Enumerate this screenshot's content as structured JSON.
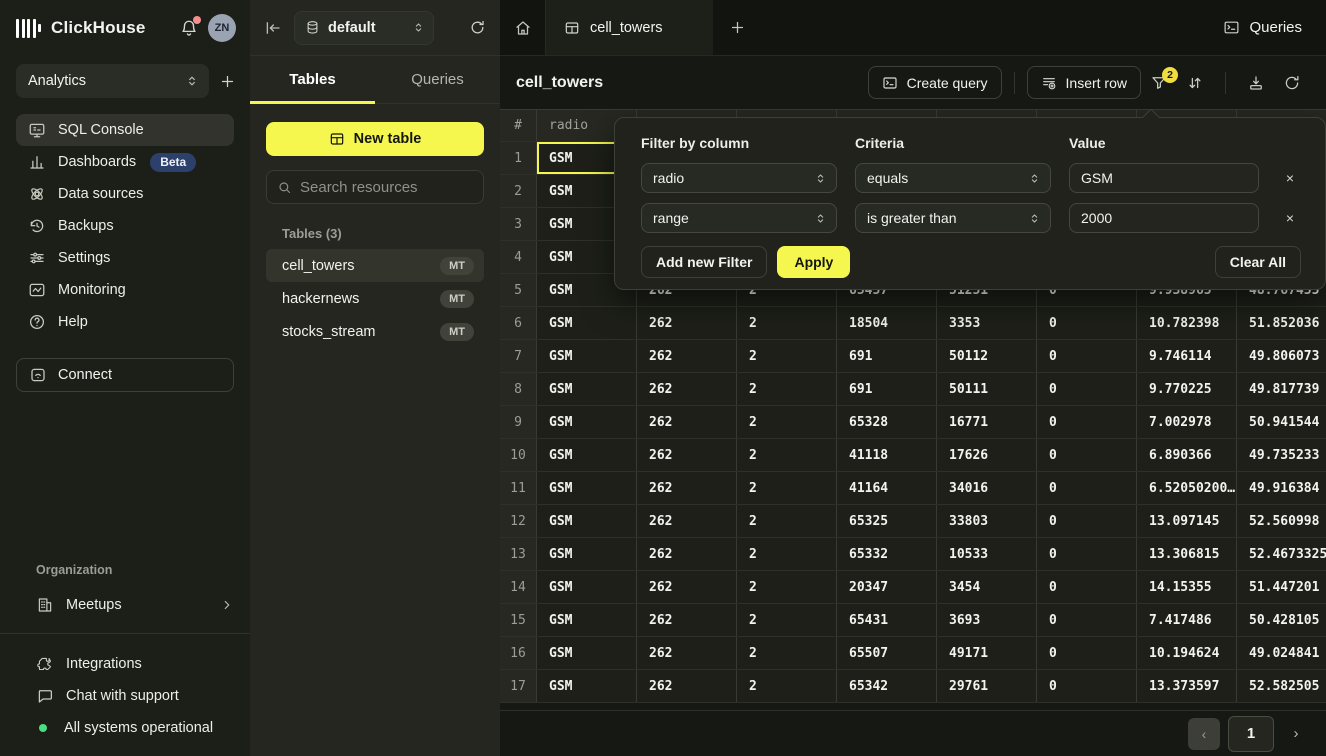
{
  "sidebar": {
    "brand": "ClickHouse",
    "avatar": "ZN",
    "workspace": "Analytics",
    "nav": [
      {
        "label": "SQL Console"
      },
      {
        "label": "Dashboards",
        "badge": "Beta"
      },
      {
        "label": "Data sources"
      },
      {
        "label": "Backups"
      },
      {
        "label": "Settings"
      },
      {
        "label": "Monitoring"
      },
      {
        "label": "Help"
      }
    ],
    "connect": "Connect",
    "organization": {
      "label": "Organization",
      "meetups": "Meetups"
    },
    "footer": {
      "integrations": "Integrations",
      "chat": "Chat with support",
      "status": "All systems operational"
    }
  },
  "panel2": {
    "database": "default",
    "tabs": {
      "tables": "Tables",
      "queries": "Queries"
    },
    "new_table": "New table",
    "search_placeholder": "Search resources",
    "tables_label": "Tables (3)",
    "tables": [
      {
        "name": "cell_towers",
        "engine": "MT",
        "selected": true
      },
      {
        "name": "hackernews",
        "engine": "MT",
        "selected": false
      },
      {
        "name": "stocks_stream",
        "engine": "MT",
        "selected": false
      }
    ]
  },
  "main": {
    "tab": "cell_towers",
    "queries_button": "Queries",
    "title": "cell_towers",
    "create_query": "Create query",
    "insert_row": "Insert row",
    "filter_badge": "2"
  },
  "filter_popup": {
    "column_label": "Filter by column",
    "criteria_label": "Criteria",
    "value_label": "Value",
    "filters": [
      {
        "column": "radio",
        "criteria": "equals",
        "value": "GSM"
      },
      {
        "column": "range",
        "criteria": "is greater than",
        "value": "2000"
      }
    ],
    "add_button": "Add new Filter",
    "apply_button": "Apply",
    "clear_button": "Clear All",
    "remove_symbol": "×"
  },
  "table": {
    "columns": [
      "#",
      "radio",
      "",
      "",
      "",
      "",
      "",
      "",
      ""
    ],
    "selected_cell": {
      "row": 0,
      "col": 1
    },
    "rows": [
      [
        "1",
        "GSM",
        "",
        "",
        "",
        "",
        "",
        "",
        ""
      ],
      [
        "2",
        "GSM",
        "",
        "",
        "",
        "",
        "",
        "",
        ""
      ],
      [
        "3",
        "GSM",
        "",
        "",
        "",
        "",
        "",
        "",
        ""
      ],
      [
        "4",
        "GSM",
        "",
        "",
        "",
        "",
        "",
        "",
        ""
      ],
      [
        "5",
        "GSM",
        "262",
        "2",
        "65457",
        "51251",
        "0",
        "9.938965",
        "48.767455"
      ],
      [
        "6",
        "GSM",
        "262",
        "2",
        "18504",
        "3353",
        "0",
        "10.782398",
        "51.852036"
      ],
      [
        "7",
        "GSM",
        "262",
        "2",
        "691",
        "50112",
        "0",
        "9.746114",
        "49.806073"
      ],
      [
        "8",
        "GSM",
        "262",
        "2",
        "691",
        "50111",
        "0",
        "9.770225",
        "49.817739"
      ],
      [
        "9",
        "GSM",
        "262",
        "2",
        "65328",
        "16771",
        "0",
        "7.002978",
        "50.941544"
      ],
      [
        "10",
        "GSM",
        "262",
        "2",
        "41118",
        "17626",
        "0",
        "6.890366",
        "49.735233"
      ],
      [
        "11",
        "GSM",
        "262",
        "2",
        "41164",
        "34016",
        "0",
        "6.52050200…",
        "49.916384"
      ],
      [
        "12",
        "GSM",
        "262",
        "2",
        "65325",
        "33803",
        "0",
        "13.097145",
        "52.560998"
      ],
      [
        "13",
        "GSM",
        "262",
        "2",
        "65332",
        "10533",
        "0",
        "13.306815",
        "52.4673325"
      ],
      [
        "14",
        "GSM",
        "262",
        "2",
        "20347",
        "3454",
        "0",
        "14.15355",
        "51.447201"
      ],
      [
        "15",
        "GSM",
        "262",
        "2",
        "65431",
        "3693",
        "0",
        "7.417486",
        "50.428105"
      ],
      [
        "16",
        "GSM",
        "262",
        "2",
        "65507",
        "49171",
        "0",
        "10.194624",
        "49.024841"
      ],
      [
        "17",
        "GSM",
        "262",
        "2",
        "65342",
        "29761",
        "0",
        "13.373597",
        "52.582505"
      ]
    ]
  },
  "pagination": {
    "prev": "‹",
    "page": "1",
    "next": "›"
  }
}
